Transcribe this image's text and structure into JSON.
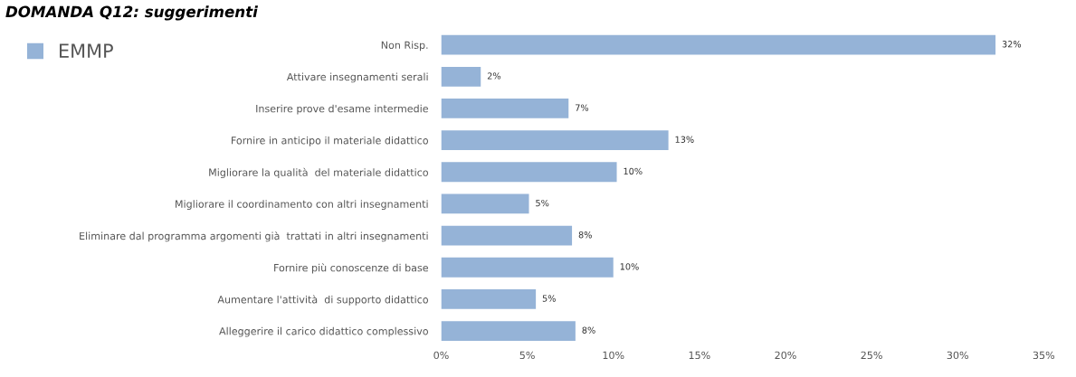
{
  "chart_data": {
    "type": "bar",
    "orientation": "horizontal",
    "title": "DOMANDA Q12: suggerimenti",
    "categories": [
      "Non Risp.",
      "Attivare insegnamenti serali",
      "Inserire prove d'esame intermedie",
      "Fornire in anticipo il materiale didattico",
      "Migliorare la qualità  del materiale didattico",
      "Migliorare il coordinamento con altri insegnamenti",
      "Eliminare dal programma argomenti già  trattati in altri insegnamenti",
      "Fornire più conoscenze di base",
      "Aumentare l'attività  di supporto didattico",
      "Alleggerire il carico didattico complessivo"
    ],
    "series": [
      {
        "name": "EMMP",
        "color": "#95b3d7",
        "values": [
          32.2,
          2.3,
          7.4,
          13.2,
          10.2,
          5.1,
          7.6,
          10.0,
          5.5,
          7.8
        ],
        "value_labels": [
          "32%",
          "2%",
          "7%",
          "13%",
          "10%",
          "5%",
          "8%",
          "10%",
          "5%",
          "8%"
        ]
      }
    ],
    "xlim": [
      0,
      35
    ],
    "xticks": [
      {
        "value": 0,
        "label": "0%"
      },
      {
        "value": 5,
        "label": "5%"
      },
      {
        "value": 10,
        "label": "10%"
      },
      {
        "value": 15,
        "label": "15%"
      },
      {
        "value": 20,
        "label": "20%"
      },
      {
        "value": 25,
        "label": "25%"
      },
      {
        "value": 30,
        "label": "30%"
      },
      {
        "value": 35,
        "label": "35%"
      }
    ],
    "legend": "top left",
    "grid": false
  }
}
